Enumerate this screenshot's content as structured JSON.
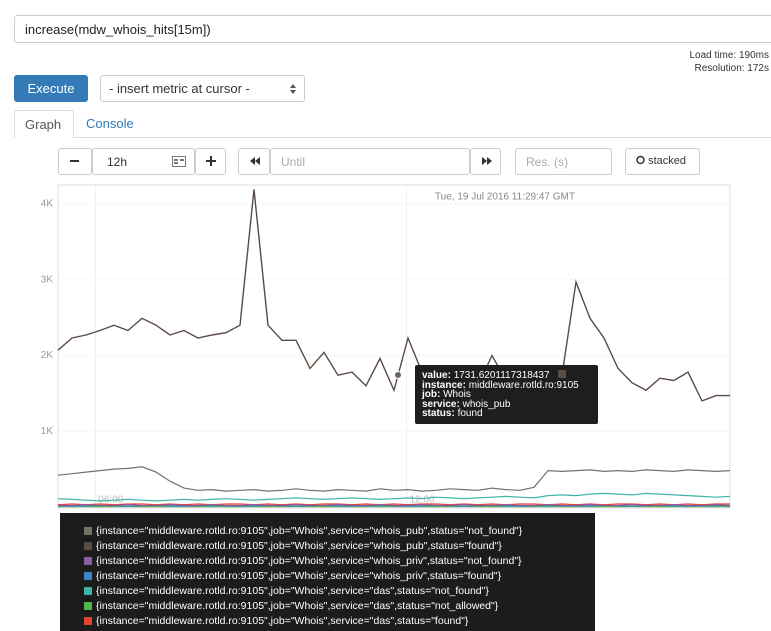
{
  "query": "increase(mdw_whois_hits[15m])",
  "stats": {
    "load_time": "Load time: 190ms",
    "resolution": "Resolution: 172s"
  },
  "controls": {
    "execute": "Execute",
    "metric_select": "- insert metric at cursor -",
    "tabs": [
      "Graph",
      "Console"
    ],
    "range": "12h",
    "until": "Until",
    "res": "Res. (s)",
    "stacked": "stacked"
  },
  "chart_data": {
    "type": "line",
    "annotation": "Tue, 19 Jul 2016 11:29:47 GMT",
    "x": [
      5.28,
      5.55,
      5.82,
      6.09,
      6.36,
      6.63,
      6.9,
      7.17,
      7.44,
      7.71,
      7.98,
      8.25,
      8.52,
      8.79,
      9.06,
      9.33,
      9.6,
      9.87,
      10.14,
      10.41,
      10.68,
      10.95,
      11.22,
      11.49,
      11.76,
      12.03,
      12.3,
      12.57,
      12.84,
      13.11,
      13.38,
      13.65,
      13.92,
      14.19,
      14.46,
      14.73,
      15,
      15.27,
      15.54,
      15.81,
      16.08,
      16.35,
      16.62,
      16.89,
      17.16,
      17.43,
      17.7,
      17.97,
      18.24
    ],
    "xlim": [
      5.28,
      18.24
    ],
    "xticks": [
      {
        "value": 6,
        "label": "06:00"
      },
      {
        "value": 12,
        "label": "12:00"
      }
    ],
    "ylim": [
      0,
      4250
    ],
    "yticks": [
      {
        "value": 1000,
        "label": "1K"
      },
      {
        "value": 2000,
        "label": "2K"
      },
      {
        "value": 3000,
        "label": "3K"
      },
      {
        "value": 4000,
        "label": "4K"
      }
    ],
    "grid": true,
    "series": [
      {
        "name": "{instance=\"middleware.rotld.ro:9105\",job=\"Whois\",service=\"whois_pub\",status=\"not_found\"}",
        "color": "#737368",
        "values": [
          420,
          440,
          460,
          480,
          500,
          510,
          530,
          460,
          340,
          250,
          220,
          230,
          210,
          220,
          230,
          210,
          220,
          240,
          220,
          210,
          230,
          220,
          210,
          240,
          220,
          230,
          210,
          220,
          240,
          230,
          220,
          250,
          230,
          220,
          260,
          480,
          470,
          480,
          490,
          470,
          480,
          470,
          490,
          480,
          470,
          490,
          480,
          470,
          480
        ]
      },
      {
        "name": "{instance=\"middleware.rotld.ro:9105\",job=\"Whois\",service=\"whois_pub\",status=\"found\"}",
        "color": "#5a4c44",
        "values": [
          2070,
          2230,
          2270,
          2330,
          2400,
          2330,
          2490,
          2400,
          2270,
          2330,
          2230,
          2270,
          2300,
          2400,
          4190,
          2400,
          2200,
          2200,
          1830,
          2040,
          1740,
          1780,
          1600,
          1960,
          1540,
          2230,
          1780,
          1670,
          1600,
          1640,
          1600,
          2000,
          1670,
          1510,
          1560,
          1600,
          1740,
          2970,
          2490,
          2230,
          1830,
          1640,
          1540,
          1700,
          1670,
          1780,
          1400,
          1470,
          1470
        ]
      },
      {
        "name": "{instance=\"middleware.rotld.ro:9105\",job=\"Whois\",service=\"whois_priv\",status=\"not_found\"}",
        "color": "#8e5ea2",
        "values": [
          20,
          20,
          30,
          20,
          20,
          30,
          20,
          20,
          30,
          20,
          20,
          30,
          20,
          20,
          30,
          20,
          20,
          30,
          20,
          20,
          30,
          20,
          20,
          30,
          20,
          20,
          30,
          20,
          20,
          30,
          20,
          20,
          30,
          20,
          20,
          30,
          20,
          20,
          30,
          20,
          20,
          30,
          20,
          20,
          30,
          20,
          20,
          30,
          20
        ]
      },
      {
        "name": "{instance=\"middleware.rotld.ro:9105\",job=\"Whois\",service=\"whois_priv\",status=\"found\"}",
        "color": "#3c86c8",
        "values": [
          15,
          10,
          15,
          20,
          15,
          10,
          15,
          20,
          15,
          10,
          15,
          20,
          15,
          10,
          15,
          20,
          15,
          10,
          15,
          20,
          15,
          10,
          15,
          20,
          15,
          10,
          15,
          20,
          15,
          10,
          15,
          20,
          15,
          10,
          15,
          20,
          15,
          10,
          15,
          20,
          15,
          10,
          15,
          20,
          15,
          10,
          15,
          20,
          15
        ]
      },
      {
        "name": "{instance=\"middleware.rotld.ro:9105\",job=\"Whois\",service=\"das\",status=\"not_found\"}",
        "color": "#3fb5a6",
        "values": [
          110,
          100,
          90,
          80,
          90,
          100,
          90,
          80,
          90,
          100,
          90,
          100,
          110,
          100,
          90,
          100,
          110,
          120,
          110,
          100,
          110,
          120,
          110,
          100,
          110,
          120,
          110,
          130,
          120,
          110,
          120,
          130,
          140,
          130,
          120,
          150,
          160,
          150,
          170,
          180,
          170,
          160,
          180,
          170,
          160,
          150,
          140,
          130,
          140
        ]
      },
      {
        "name": "{instance=\"middleware.rotld.ro:9105\",job=\"Whois\",service=\"das\",status=\"not_allowed\"}",
        "color": "#4db848",
        "values": [
          5,
          5,
          5,
          5,
          5,
          5,
          5,
          5,
          5,
          5,
          5,
          5,
          5,
          5,
          5,
          5,
          5,
          5,
          5,
          5,
          5,
          5,
          5,
          5,
          5,
          5,
          5,
          5,
          5,
          5,
          5,
          5,
          5,
          5,
          5,
          5,
          5,
          5,
          5,
          5,
          5,
          5,
          5,
          5,
          5,
          5,
          5,
          5,
          5
        ]
      },
      {
        "name": "{instance=\"middleware.rotld.ro:9105\",job=\"Whois\",service=\"das\",status=\"found\"}",
        "color": "#e0452f",
        "values": [
          30,
          40,
          30,
          40,
          30,
          40,
          40,
          30,
          40,
          30,
          40,
          30,
          40,
          40,
          30,
          40,
          30,
          40,
          30,
          40,
          40,
          30,
          40,
          30,
          40,
          30,
          40,
          40,
          30,
          40,
          30,
          40,
          30,
          40,
          40,
          30,
          40,
          30,
          40,
          30,
          40,
          40,
          30,
          40,
          30,
          40,
          30,
          40,
          40
        ]
      }
    ]
  },
  "tooltip": {
    "lines": [
      {
        "key": "value:",
        "text": "1731.6201117318437"
      },
      {
        "key": "instance:",
        "text": "middleware.rotld.ro:9105"
      },
      {
        "key": "job:",
        "text": "Whois"
      },
      {
        "key": "service:",
        "text": "whois_pub"
      },
      {
        "key": "status:",
        "text": "found"
      }
    ]
  }
}
